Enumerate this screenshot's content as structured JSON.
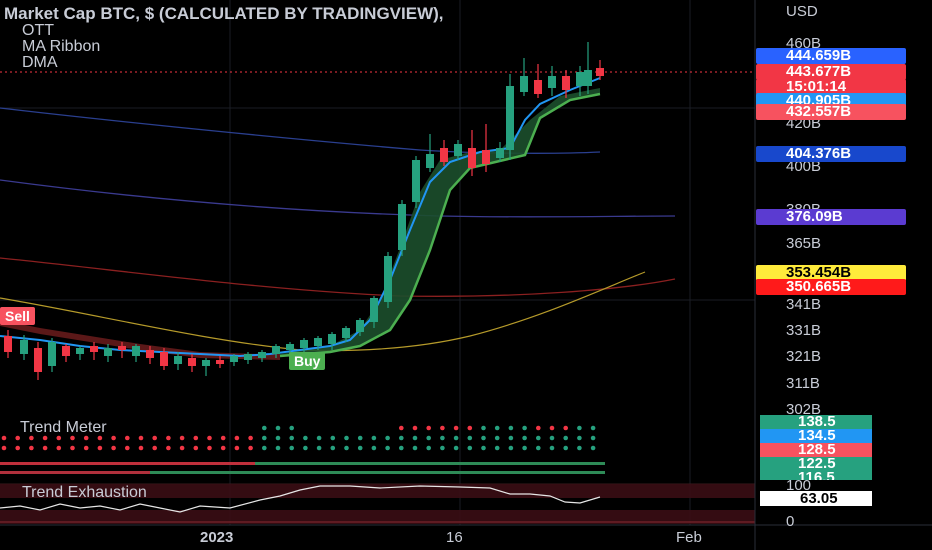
{
  "legend": {
    "title": "Market Cap BTC, $ (CALCULATED BY TRADINGVIEW),",
    "studies": [
      "OTT",
      "MA Ribbon",
      "DMA"
    ]
  },
  "price_axis": {
    "currency": "USD",
    "ticks": [
      "460B",
      "420B",
      "400B",
      "380B",
      "365B",
      "341B",
      "331B",
      "321B",
      "311B",
      "302B"
    ]
  },
  "price_tags": [
    {
      "text": "444.659B",
      "bg": "#2962ff",
      "fg": "#ffffff"
    },
    {
      "text": "443.677B",
      "bg": "#f23645",
      "fg": "#ffffff"
    },
    {
      "text": "15:01:14",
      "bg": "#f23645",
      "fg": "#ffffff"
    },
    {
      "text": "440.905B",
      "bg": "#2196f3",
      "fg": "#ffffff"
    },
    {
      "text": "432.557B",
      "bg": "#f7525f",
      "fg": "#ffffff"
    },
    {
      "text": "404.376B",
      "bg": "#1848cc",
      "fg": "#ffffff"
    },
    {
      "text": "376.09B",
      "bg": "#5b3bd1",
      "fg": "#ffffff"
    },
    {
      "text": "353.454B",
      "bg": "#ffeb3b",
      "fg": "#000000"
    },
    {
      "text": "350.665B",
      "bg": "#ff1a1a",
      "fg": "#ffffff"
    }
  ],
  "signals": {
    "sell": "Sell",
    "buy": "Buy"
  },
  "trend_meter": {
    "title": "Trend Meter",
    "values": [
      {
        "text": "138.5",
        "bg": "#26a17f"
      },
      {
        "text": "134.5",
        "bg": "#2196f3"
      },
      {
        "text": "128.5",
        "bg": "#f7525f"
      },
      {
        "text": "122.5",
        "bg": "#26a17f"
      },
      {
        "text": "116.5",
        "bg": "#26a17f"
      }
    ]
  },
  "trend_exhaustion": {
    "title": "Trend Exhaustion",
    "ticks": [
      "100",
      "0"
    ],
    "value": "63.05"
  },
  "time_axis": {
    "labels": [
      "2023",
      "16",
      "Feb"
    ]
  },
  "colors": {
    "up": "#26a17f",
    "down": "#f23645",
    "ma_fast": "#2196f3",
    "ott": "#4caf50"
  }
}
